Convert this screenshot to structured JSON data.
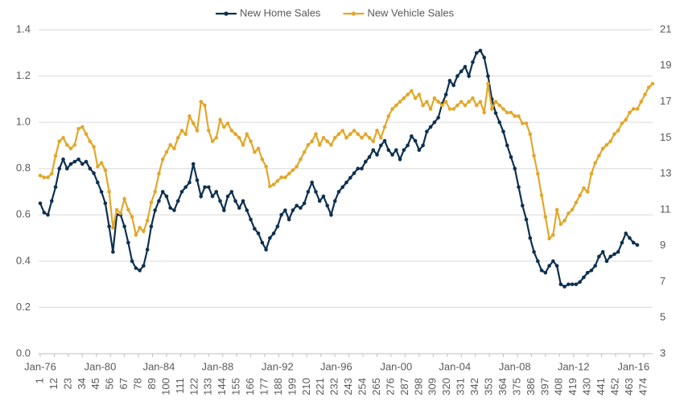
{
  "chart_data": {
    "type": "line",
    "legend": "top",
    "grid": true,
    "xlim": [
      1,
      481
    ],
    "xticks": [
      1,
      12,
      23,
      34,
      45,
      56,
      67,
      78,
      89,
      100,
      111,
      122,
      133,
      144,
      155,
      166,
      177,
      188,
      199,
      210,
      221,
      232,
      243,
      254,
      265,
      276,
      287,
      298,
      309,
      320,
      331,
      342,
      353,
      364,
      375,
      386,
      397,
      408,
      419,
      430,
      441,
      452,
      463,
      474
    ],
    "xticks_dates": [
      {
        "value": 1,
        "label": "Jan-76"
      },
      {
        "value": 48,
        "label": "Jan-80"
      },
      {
        "value": 94,
        "label": "Jan-84"
      },
      {
        "value": 140,
        "label": "Jan-88"
      },
      {
        "value": 187,
        "label": "Jan-92"
      },
      {
        "value": 233,
        "label": "Jan-96"
      },
      {
        "value": 280,
        "label": "Jan-00"
      },
      {
        "value": 326,
        "label": "Jan-04"
      },
      {
        "value": 373,
        "label": "Jan-08"
      },
      {
        "value": 419,
        "label": "Jan-12"
      },
      {
        "value": 466,
        "label": "Jan-16"
      }
    ],
    "ylim": [
      0,
      1.4
    ],
    "yticks": [
      {
        "value": 0,
        "label": "0.0"
      },
      0.2,
      0.4,
      0.6,
      0.8,
      {
        "value": 1,
        "label": "1.0"
      },
      1.2,
      1.4
    ],
    "y2lim": [
      3,
      21
    ],
    "y2ticks": [
      3,
      5,
      7,
      9,
      11,
      13,
      15,
      17,
      19,
      21
    ],
    "x": [
      1,
      4,
      7,
      10,
      13,
      16,
      19,
      22,
      25,
      28,
      31,
      34,
      37,
      40,
      43,
      46,
      49,
      52,
      55,
      58,
      61,
      64,
      67,
      70,
      73,
      76,
      79,
      82,
      85,
      88,
      91,
      94,
      97,
      100,
      103,
      106,
      109,
      112,
      115,
      118,
      121,
      124,
      127,
      130,
      133,
      136,
      139,
      142,
      145,
      148,
      151,
      154,
      157,
      160,
      163,
      166,
      169,
      172,
      175,
      178,
      181,
      184,
      187,
      190,
      193,
      196,
      199,
      202,
      205,
      208,
      211,
      214,
      217,
      220,
      223,
      226,
      229,
      232,
      235,
      238,
      241,
      244,
      247,
      250,
      253,
      256,
      259,
      262,
      265,
      268,
      271,
      274,
      277,
      280,
      283,
      286,
      289,
      292,
      295,
      298,
      301,
      304,
      307,
      310,
      313,
      316,
      319,
      322,
      325,
      328,
      331,
      334,
      337,
      340,
      343,
      346,
      349,
      352,
      355,
      358,
      361,
      364,
      367,
      370,
      373,
      376,
      379,
      382,
      385,
      388,
      391,
      394,
      397,
      400,
      403,
      406,
      409,
      412,
      415,
      418,
      421,
      424,
      427,
      430,
      433,
      436,
      439,
      442,
      445,
      448,
      451,
      454,
      457,
      460,
      463,
      466,
      469,
      472,
      475,
      478,
      481
    ],
    "series": [
      {
        "name": "New Home Sales",
        "color": "#0d3050",
        "values": [
          0.65,
          0.61,
          0.6,
          0.66,
          0.72,
          0.8,
          0.84,
          0.8,
          0.82,
          0.83,
          0.84,
          0.82,
          0.83,
          0.8,
          0.78,
          0.74,
          0.7,
          0.65,
          0.55,
          0.44,
          0.6,
          0.6,
          0.55,
          0.48,
          0.4,
          0.37,
          0.36,
          0.38,
          0.45,
          0.55,
          0.62,
          0.66,
          0.7,
          0.68,
          0.63,
          0.62,
          0.66,
          0.7,
          0.72,
          0.74,
          0.82,
          0.75,
          0.68,
          0.72,
          0.72,
          0.68,
          0.7,
          0.66,
          0.62,
          0.68,
          0.7,
          0.66,
          0.63,
          0.66,
          0.62,
          0.58,
          0.54,
          0.52,
          0.48,
          0.45,
          0.5,
          0.52,
          0.55,
          0.6,
          0.62,
          0.58,
          0.62,
          0.64,
          0.63,
          0.65,
          0.7,
          0.74,
          0.7,
          0.66,
          0.68,
          0.64,
          0.6,
          0.66,
          0.7,
          0.72,
          0.74,
          0.76,
          0.78,
          0.8,
          0.8,
          0.83,
          0.85,
          0.88,
          0.86,
          0.9,
          0.92,
          0.88,
          0.86,
          0.88,
          0.84,
          0.88,
          0.9,
          0.94,
          0.92,
          0.88,
          0.9,
          0.96,
          0.98,
          1.0,
          1.02,
          1.08,
          1.12,
          1.18,
          1.16,
          1.2,
          1.22,
          1.24,
          1.2,
          1.26,
          1.3,
          1.31,
          1.28,
          1.2,
          1.1,
          1.04,
          1.0,
          0.96,
          0.9,
          0.85,
          0.8,
          0.72,
          0.64,
          0.58,
          0.5,
          0.44,
          0.4,
          0.36,
          0.35,
          0.38,
          0.4,
          0.38,
          0.3,
          0.29,
          0.3,
          0.3,
          0.3,
          0.31,
          0.33,
          0.35,
          0.36,
          0.38,
          0.42,
          0.44,
          0.4,
          0.42,
          0.43,
          0.44,
          0.48,
          0.52,
          0.5,
          0.48,
          0.47,
          null,
          null,
          null,
          null
        ]
      },
      {
        "name": "New Vehicle Sales",
        "color": "#e2a72a",
        "axis": "y2",
        "values": [
          12.9,
          12.8,
          12.8,
          13.0,
          14.0,
          14.8,
          15.0,
          14.6,
          14.4,
          14.6,
          15.5,
          15.6,
          15.2,
          14.8,
          14.5,
          13.4,
          13.6,
          13.2,
          12.0,
          10.0,
          11.0,
          10.8,
          11.6,
          11.0,
          10.6,
          9.6,
          10.0,
          9.8,
          10.4,
          11.4,
          12.0,
          13.0,
          13.8,
          14.2,
          14.6,
          14.4,
          15.0,
          15.4,
          15.2,
          16.2,
          15.8,
          15.4,
          17.0,
          16.8,
          15.4,
          14.8,
          15.0,
          16.0,
          15.6,
          15.8,
          15.4,
          15.2,
          15.0,
          14.6,
          15.2,
          14.8,
          14.2,
          14.4,
          13.8,
          13.4,
          12.3,
          12.4,
          12.6,
          12.8,
          12.8,
          13.0,
          13.2,
          13.4,
          13.8,
          14.2,
          14.6,
          14.8,
          15.2,
          14.6,
          15.0,
          14.8,
          14.6,
          15.0,
          15.2,
          15.4,
          15.0,
          15.2,
          15.4,
          15.2,
          15.0,
          15.2,
          15.0,
          14.8,
          15.4,
          15.0,
          15.6,
          16.2,
          16.6,
          16.8,
          17.0,
          17.2,
          17.4,
          17.6,
          17.2,
          17.4,
          16.8,
          17.0,
          16.6,
          17.2,
          17.0,
          16.8,
          17.0,
          16.6,
          16.6,
          16.8,
          17.0,
          16.8,
          17.0,
          17.2,
          16.8,
          17.0,
          16.4,
          18.0,
          16.6,
          17.0,
          16.8,
          16.6,
          16.4,
          16.4,
          16.2,
          16.2,
          15.8,
          15.8,
          15.2,
          14.0,
          13.0,
          11.8,
          10.6,
          9.4,
          9.6,
          11.0,
          10.2,
          10.4,
          10.8,
          11.0,
          11.4,
          11.8,
          12.2,
          12.0,
          13.0,
          13.6,
          14.0,
          14.4,
          14.6,
          14.8,
          15.2,
          15.4,
          15.8,
          16.0,
          16.4,
          16.6,
          16.6,
          17.0,
          17.4,
          17.8,
          18.0
        ]
      }
    ]
  }
}
